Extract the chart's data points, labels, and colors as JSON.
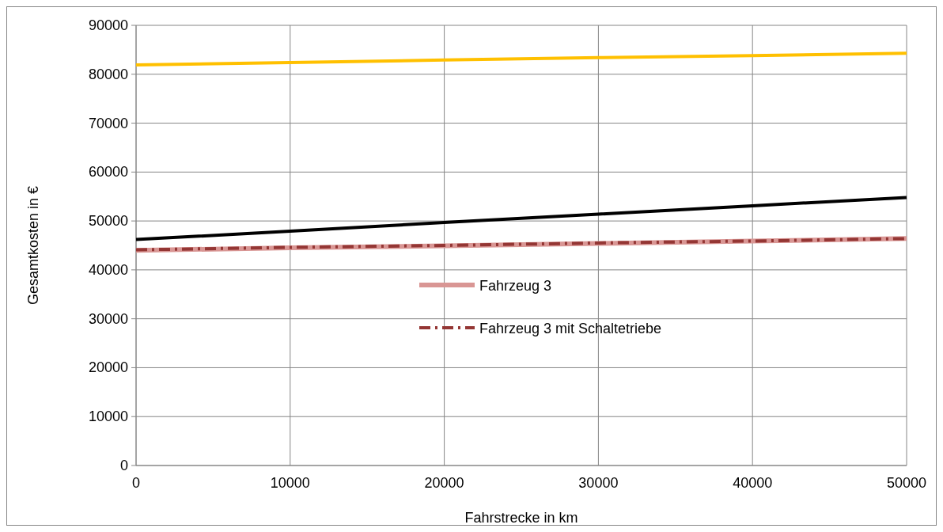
{
  "chart_data": {
    "type": "line",
    "xlabel": "Fahrstrecke in km",
    "ylabel": "Gesamtkosten in €",
    "x": [
      0,
      10000,
      20000,
      30000,
      40000,
      50000
    ],
    "series": [
      {
        "color": "#000000",
        "values": [
          46200,
          47900,
          49700,
          51400,
          53100,
          54800
        ],
        "line_style": "solid"
      },
      {
        "name": "Fahrzeug 3",
        "color": "#d99694",
        "values": [
          44000,
          44500,
          44900,
          45400,
          45900,
          46400
        ],
        "line_style": "solid"
      },
      {
        "name": "Fahrzeug 3 mit Schaltetriebe",
        "color": "#943634",
        "values": [
          44100,
          44600,
          45000,
          45500,
          45900,
          46400
        ],
        "line_style": "dashed"
      },
      {
        "color": "#ffc000",
        "values": [
          81900,
          82400,
          82900,
          83400,
          83800,
          84300
        ],
        "line_style": "solid"
      }
    ],
    "xlim": [
      0,
      50000
    ],
    "xticks": [
      0,
      10000,
      20000,
      30000,
      40000,
      50000
    ],
    "ylim": [
      0,
      90000
    ],
    "yticks": [
      0,
      10000,
      20000,
      30000,
      40000,
      50000,
      60000,
      70000,
      80000,
      90000
    ],
    "grid": true,
    "legend": "bottom"
  }
}
